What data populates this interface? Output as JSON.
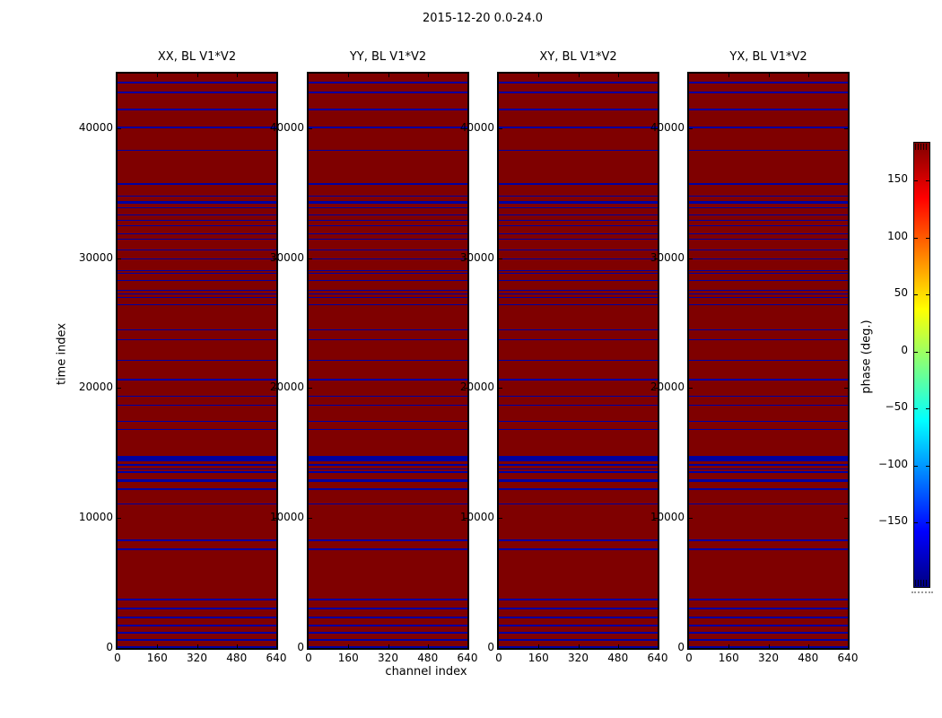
{
  "figure": {
    "title": "2015-12-20 0.0-24.0"
  },
  "chart_data": {
    "type": "heatmap",
    "title": "2015-12-20 0.0-24.0",
    "xlabel": "channel index",
    "ylabel": "time index",
    "panels": [
      {
        "title": "XX, BL V1*V2"
      },
      {
        "title": "YY, BL V1*V2"
      },
      {
        "title": "XY, BL V1*V2"
      },
      {
        "title": "YX, BL V1*V2"
      }
    ],
    "x_ticks": [
      0,
      160,
      320,
      480,
      640
    ],
    "x_tick_labels": [
      "0",
      "160",
      "320",
      "480",
      "640"
    ],
    "y_ticks": [
      0,
      10000,
      20000,
      30000,
      40000
    ],
    "y_tick_labels": [
      "0",
      "10000",
      "20000",
      "30000",
      "40000"
    ],
    "xlim": [
      0,
      640
    ],
    "ylim": [
      0,
      44200
    ],
    "background_phase_deg": 180,
    "row_phase_deg": -180,
    "blue_rows": [
      [
        43500,
        1.5
      ],
      [
        42760,
        1.5
      ],
      [
        41450,
        1.5
      ],
      [
        40060,
        1.5
      ],
      [
        38280,
        1.5
      ],
      [
        35720,
        1.5
      ],
      [
        34760,
        1.5
      ],
      [
        34280,
        2.5
      ],
      [
        33860,
        1.5
      ],
      [
        33310,
        1.5
      ],
      [
        32900,
        1.5
      ],
      [
        32480,
        1.5
      ],
      [
        31860,
        1.5
      ],
      [
        31450,
        1.5
      ],
      [
        30620,
        1.5
      ],
      [
        29930,
        1.5
      ],
      [
        29030,
        1.5
      ],
      [
        28830,
        1.5
      ],
      [
        28280,
        1.5
      ],
      [
        27520,
        1.5
      ],
      [
        27240,
        1.5
      ],
      [
        26970,
        1.5
      ],
      [
        26410,
        1.5
      ],
      [
        24480,
        1.5
      ],
      [
        23720,
        1.5
      ],
      [
        22140,
        1.5
      ],
      [
        20620,
        2
      ],
      [
        19380,
        1.5
      ],
      [
        18690,
        1.5
      ],
      [
        17450,
        1.5
      ],
      [
        16830,
        1.5
      ],
      [
        14600,
        6
      ],
      [
        14090,
        1.5
      ],
      [
        13790,
        1.5
      ],
      [
        13520,
        1.5
      ],
      [
        12890,
        2.5
      ],
      [
        12210,
        1.5
      ],
      [
        11100,
        1.5
      ],
      [
        8280,
        1.5
      ],
      [
        7590,
        1.5
      ],
      [
        3720,
        1.5
      ],
      [
        3030,
        1.5
      ],
      [
        2340,
        1.5
      ],
      [
        1720,
        1.5
      ],
      [
        1170,
        1.5
      ],
      [
        620,
        1.5
      ],
      [
        60,
        2.5
      ]
    ],
    "colorbar": {
      "label": "phase (deg.)",
      "colormap": "jet",
      "ticks": [
        150,
        100,
        50,
        0,
        -50,
        -100,
        -150
      ],
      "tick_labels": [
        "150",
        "100",
        "50",
        "0",
        "−50",
        "−100",
        "−150"
      ]
    },
    "colors": {
      "heat_background": "#7f0000",
      "heat_rows": "#0000a0",
      "frame": "#000000"
    }
  }
}
